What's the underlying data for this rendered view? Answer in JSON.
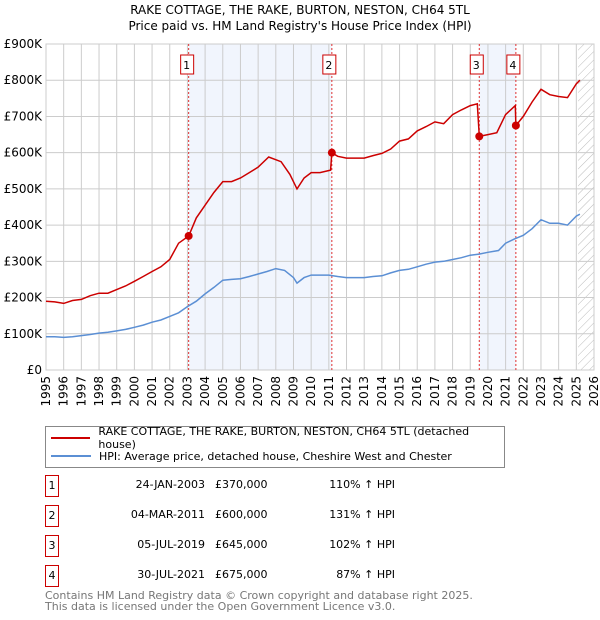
{
  "chart_data": {
    "type": "line",
    "title": "RAKE COTTAGE, THE RAKE, BURTON, NESTON, CH64 5TL",
    "subtitle": "Price paid vs. HM Land Registry's House Price Index (HPI)",
    "xlabel": "",
    "ylabel": "",
    "xlim": [
      1995,
      2026
    ],
    "ylim": [
      0,
      900000
    ],
    "x_ticks": [
      "1995",
      "1996",
      "1997",
      "1998",
      "1999",
      "2000",
      "2001",
      "2002",
      "2003",
      "2004",
      "2005",
      "2006",
      "2007",
      "2008",
      "2009",
      "2010",
      "2011",
      "2012",
      "2013",
      "2014",
      "2015",
      "2016",
      "2017",
      "2018",
      "2019",
      "2020",
      "2021",
      "2022",
      "2023",
      "2024",
      "2025",
      "2026"
    ],
    "y_ticks": [
      {
        "v": 0,
        "label": "£0"
      },
      {
        "v": 100000,
        "label": "£100K"
      },
      {
        "v": 200000,
        "label": "£200K"
      },
      {
        "v": 300000,
        "label": "£300K"
      },
      {
        "v": 400000,
        "label": "£400K"
      },
      {
        "v": 500000,
        "label": "£500K"
      },
      {
        "v": 600000,
        "label": "£600K"
      },
      {
        "v": 700000,
        "label": "£700K"
      },
      {
        "v": 800000,
        "label": "£800K"
      },
      {
        "v": 900000,
        "label": "£900K"
      }
    ],
    "grid": true,
    "shaded_ranges": [
      [
        2003.07,
        2011.17
      ],
      [
        2019.51,
        2021.58
      ]
    ],
    "future_hatch_from": 2025.1,
    "series": [
      {
        "name": "RAKE COTTAGE, THE RAKE, BURTON, NESTON, CH64 5TL (detached house)",
        "color": "#cc0000",
        "x": [
          1995,
          1995.5,
          1996,
          1996.5,
          1997,
          1997.5,
          1998,
          1998.5,
          1999,
          1999.5,
          2000,
          2000.5,
          2001,
          2001.5,
          2002,
          2002.5,
          2003.07,
          2003.5,
          2004,
          2004.5,
          2005,
          2005.5,
          2006,
          2006.5,
          2007,
          2007.6,
          2008.3,
          2008.8,
          2009.2,
          2009.6,
          2010,
          2010.5,
          2011.1,
          2011.17,
          2011.5,
          2012,
          2012.5,
          2013,
          2013.5,
          2014,
          2014.5,
          2015,
          2015.5,
          2016,
          2016.5,
          2017,
          2017.5,
          2018,
          2018.5,
          2019,
          2019.4,
          2019.51,
          2020,
          2020.5,
          2021,
          2021.55,
          2021.58,
          2022,
          2022.5,
          2023,
          2023.5,
          2024,
          2024.5,
          2025,
          2025.2
        ],
        "values": [
          190000,
          188000,
          184000,
          192000,
          195000,
          205000,
          212000,
          212000,
          222000,
          232000,
          245000,
          258000,
          272000,
          285000,
          305000,
          350000,
          370000,
          420000,
          455000,
          490000,
          520000,
          520000,
          530000,
          545000,
          560000,
          588000,
          575000,
          540000,
          500000,
          530000,
          545000,
          545000,
          552000,
          600000,
          590000,
          585000,
          585000,
          585000,
          592000,
          598000,
          610000,
          632000,
          638000,
          660000,
          672000,
          685000,
          680000,
          705000,
          718000,
          730000,
          735000,
          645000,
          650000,
          655000,
          705000,
          730000,
          675000,
          700000,
          740000,
          775000,
          760000,
          755000,
          752000,
          790000,
          800000
        ]
      },
      {
        "name": "HPI: Average price, detached house, Cheshire West and Chester",
        "color": "#5b8fd4",
        "x": [
          1995,
          1995.5,
          1996,
          1996.5,
          1997,
          1997.5,
          1998,
          1998.5,
          1999,
          1999.5,
          2000,
          2000.5,
          2001,
          2001.5,
          2002,
          2002.5,
          2003,
          2003.5,
          2004,
          2004.5,
          2005,
          2005.5,
          2006,
          2006.5,
          2007,
          2007.5,
          2008,
          2008.5,
          2009,
          2009.2,
          2009.6,
          2010,
          2010.5,
          2011,
          2011.5,
          2012,
          2012.5,
          2013,
          2013.5,
          2014,
          2014.5,
          2015,
          2015.5,
          2016,
          2016.5,
          2017,
          2017.5,
          2018,
          2018.5,
          2019,
          2019.5,
          2020,
          2020.6,
          2021,
          2021.5,
          2022,
          2022.5,
          2023,
          2023.5,
          2024,
          2024.5,
          2025,
          2025.2
        ],
        "values": [
          92000,
          92000,
          90000,
          92000,
          95000,
          98000,
          102000,
          104000,
          108000,
          112000,
          118000,
          124000,
          132000,
          138000,
          148000,
          158000,
          175000,
          190000,
          210000,
          228000,
          248000,
          250000,
          252000,
          258000,
          265000,
          272000,
          280000,
          275000,
          255000,
          240000,
          255000,
          262000,
          262000,
          262000,
          258000,
          255000,
          255000,
          255000,
          258000,
          260000,
          268000,
          275000,
          278000,
          285000,
          292000,
          298000,
          300000,
          305000,
          310000,
          317000,
          320000,
          325000,
          330000,
          350000,
          362000,
          372000,
          390000,
          415000,
          405000,
          405000,
          400000,
          425000,
          430000
        ]
      }
    ],
    "sales": [
      {
        "n": "1",
        "date": "24-JAN-2003",
        "x": 2003.07,
        "price": 370000,
        "price_label": "£370,000",
        "hpi": "110% ↑ HPI"
      },
      {
        "n": "2",
        "date": "04-MAR-2011",
        "x": 2011.17,
        "price": 600000,
        "price_label": "£600,000",
        "hpi": "131% ↑ HPI"
      },
      {
        "n": "3",
        "date": "05-JUL-2019",
        "x": 2019.51,
        "price": 645000,
        "price_label": "£645,000",
        "hpi": "102% ↑ HPI"
      },
      {
        "n": "4",
        "date": "30-JUL-2021",
        "x": 2021.58,
        "price": 675000,
        "price_label": "£675,000",
        "hpi": "87% ↑ HPI"
      }
    ],
    "legend": "below"
  },
  "footer": {
    "line1": "Contains HM Land Registry data © Crown copyright and database right 2025.",
    "line2": "This data is licensed under the Open Government Licence v3.0."
  }
}
